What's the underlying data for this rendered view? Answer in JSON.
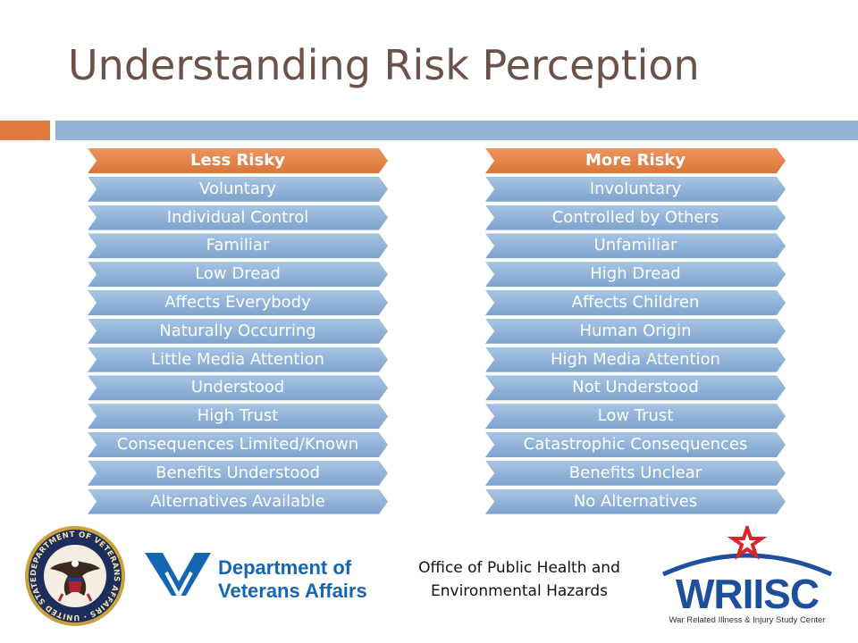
{
  "title": "Understanding Risk Perception",
  "less_risky": {
    "header": "Less Risky",
    "items": [
      "Voluntary",
      "Individual Control",
      "Familiar",
      "Low Dread",
      "Affects Everybody",
      "Naturally Occurring",
      "Little Media Attention",
      "Understood",
      "High Trust",
      "Consequences Limited/Known",
      "Benefits Understood",
      "Alternatives Available"
    ]
  },
  "more_risky": {
    "header": "More Risky",
    "items": [
      "Involuntary",
      "Controlled by Others",
      "Unfamiliar",
      "High Dread",
      "Affects Children",
      "Human Origin",
      "High Media Attention",
      "Not Understood",
      "Low Trust",
      "Catastrophic Consequences",
      "Benefits Unclear",
      "No Alternatives"
    ]
  },
  "footer": {
    "seal_text": "DEPARTMENT OF VETERANS AFFAIRS · UNITED STATES OF AMERICA",
    "va_line1": "Department of",
    "va_line2": "Veterans Affairs",
    "office_line1": "Office of Public Health and",
    "office_line2": "Environmental Hazards",
    "wriisc_name": "WRIISC",
    "wriisc_tagline": "War Related Illness & Injury Study Center"
  },
  "colors": {
    "accent_orange": "#e07a3f",
    "accent_blue": "#93b3d5",
    "title_brown": "#6b5249",
    "va_blue": "#1565b5",
    "wriisc_blue": "#1e4f9c",
    "wriisc_red": "#d7262c"
  }
}
